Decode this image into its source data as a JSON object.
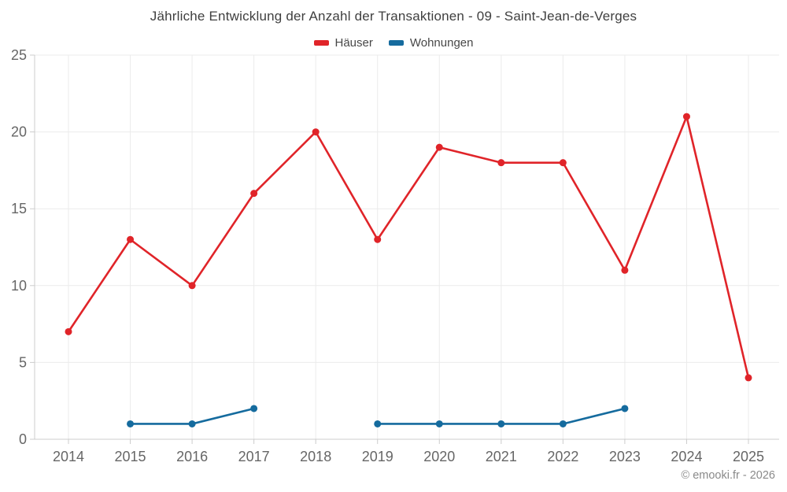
{
  "footer": {
    "copyright": "© emooki.fr - 2026"
  },
  "chart_data": {
    "type": "line",
    "title": "Jährliche Entwicklung der Anzahl der Transaktionen - 09 - Saint-Jean-de-Verges",
    "categories": [
      "2014",
      "2015",
      "2016",
      "2017",
      "2018",
      "2019",
      "2020",
      "2021",
      "2022",
      "2023",
      "2024",
      "2025"
    ],
    "series": [
      {
        "name": "Häuser",
        "color": "#e02429",
        "values": [
          7,
          13,
          10,
          16,
          20,
          13,
          19,
          18,
          18,
          11,
          21,
          4
        ]
      },
      {
        "name": "Wohnungen",
        "color": "#156b9e",
        "values": [
          null,
          1,
          1,
          2,
          null,
          1,
          1,
          1,
          1,
          2,
          null,
          null
        ]
      }
    ],
    "xlabel": "",
    "ylabel": "",
    "ylim": [
      0,
      25
    ],
    "yticks": [
      0,
      5,
      10,
      15,
      20,
      25
    ],
    "grid": true,
    "legend_position": "top",
    "grid_color": "#ebebeb",
    "axis_color": "#cccccc",
    "tick_label_color": "#666666"
  }
}
